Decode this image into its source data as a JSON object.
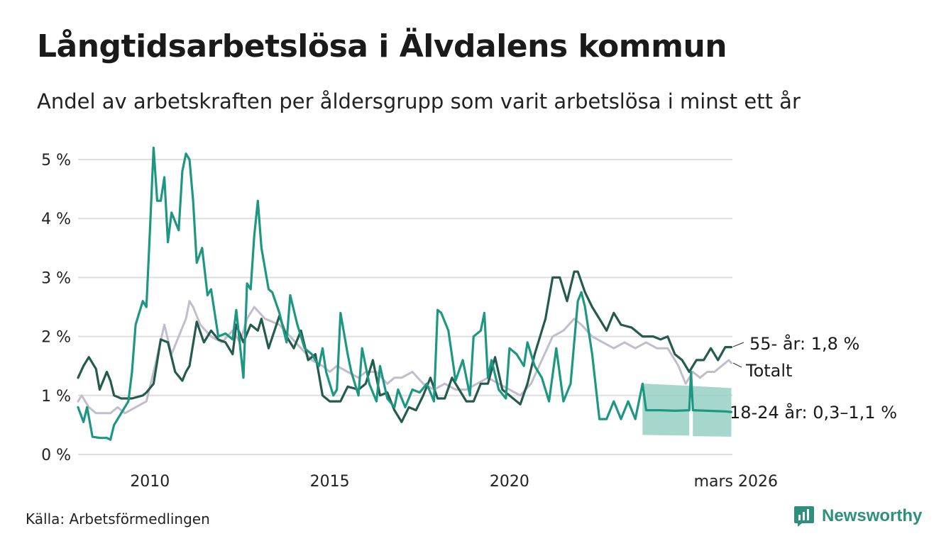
{
  "header": {
    "title": "Långtidsarbetslösa i Älvdalens kommun",
    "subtitle": "Andel av arbetskraften per åldersgrupp som varit arbetslösa i minst ett år"
  },
  "footer": {
    "source": "Källa: Arbetsförmedlingen",
    "brand": "Newsworthy"
  },
  "chart_data": {
    "type": "line",
    "title": "Långtidsarbetslösa i Älvdalens kommun",
    "xlabel": "",
    "ylabel": "",
    "xlim": [
      2008.0,
      2026.2
    ],
    "ylim": [
      0,
      5
    ],
    "y_ticks": [
      {
        "value": 0,
        "label": "0 %"
      },
      {
        "value": 1,
        "label": "1 %"
      },
      {
        "value": 2,
        "label": "2 %"
      },
      {
        "value": 3,
        "label": "3 %"
      },
      {
        "value": 4,
        "label": "4 %"
      },
      {
        "value": 5,
        "label": "5 %"
      }
    ],
    "x_ticks": [
      {
        "value": 2010,
        "label": "2010"
      },
      {
        "value": 2015,
        "label": "2015"
      },
      {
        "value": 2020,
        "label": "2020"
      },
      {
        "value": 2026.17,
        "label": "mars 2026"
      }
    ],
    "grid": true,
    "series": [
      {
        "name": "Totalt",
        "label": "Totalt",
        "color": "#c2bccb",
        "points": [
          [
            2008.0,
            0.9
          ],
          [
            2008.1,
            1.0
          ],
          [
            2008.3,
            0.8
          ],
          [
            2008.5,
            0.7
          ],
          [
            2008.9,
            0.7
          ],
          [
            2009.1,
            0.8
          ],
          [
            2009.3,
            0.7
          ],
          [
            2009.6,
            0.8
          ],
          [
            2009.9,
            0.9
          ],
          [
            2010.1,
            1.4
          ],
          [
            2010.4,
            2.2
          ],
          [
            2010.6,
            1.7
          ],
          [
            2010.8,
            2.0
          ],
          [
            2011.0,
            2.3
          ],
          [
            2011.1,
            2.6
          ],
          [
            2011.2,
            2.5
          ],
          [
            2011.4,
            2.2
          ],
          [
            2011.7,
            2.0
          ],
          [
            2012.0,
            1.9
          ],
          [
            2012.3,
            2.1
          ],
          [
            2012.5,
            1.9
          ],
          [
            2012.7,
            2.3
          ],
          [
            2012.9,
            2.5
          ],
          [
            2013.2,
            2.3
          ],
          [
            2013.6,
            2.2
          ],
          [
            2013.9,
            2.0
          ],
          [
            2014.2,
            1.8
          ],
          [
            2014.5,
            1.6
          ],
          [
            2014.8,
            1.5
          ],
          [
            2015.0,
            1.4
          ],
          [
            2015.2,
            1.5
          ],
          [
            2015.5,
            1.4
          ],
          [
            2015.8,
            1.3
          ],
          [
            2016.0,
            1.4
          ],
          [
            2016.3,
            1.4
          ],
          [
            2016.6,
            1.2
          ],
          [
            2016.8,
            1.3
          ],
          [
            2017.0,
            1.3
          ],
          [
            2017.3,
            1.4
          ],
          [
            2017.6,
            1.2
          ],
          [
            2017.9,
            1.1
          ],
          [
            2018.2,
            1.2
          ],
          [
            2018.5,
            1.1
          ],
          [
            2018.8,
            1.1
          ],
          [
            2019.1,
            1.2
          ],
          [
            2019.4,
            1.3
          ],
          [
            2019.7,
            1.2
          ],
          [
            2020.0,
            1.1
          ],
          [
            2020.3,
            1.0
          ],
          [
            2020.6,
            1.2
          ],
          [
            2020.9,
            1.6
          ],
          [
            2021.2,
            2.0
          ],
          [
            2021.5,
            2.1
          ],
          [
            2021.8,
            2.3
          ],
          [
            2022.0,
            2.2
          ],
          [
            2022.3,
            2.0
          ],
          [
            2022.6,
            1.9
          ],
          [
            2022.9,
            1.8
          ],
          [
            2023.2,
            1.9
          ],
          [
            2023.5,
            1.8
          ],
          [
            2023.8,
            1.9
          ],
          [
            2024.1,
            1.8
          ],
          [
            2024.4,
            1.8
          ],
          [
            2024.7,
            1.5
          ],
          [
            2024.9,
            1.2
          ],
          [
            2025.1,
            1.4
          ],
          [
            2025.3,
            1.3
          ],
          [
            2025.5,
            1.4
          ],
          [
            2025.7,
            1.4
          ],
          [
            2025.9,
            1.5
          ],
          [
            2026.1,
            1.6
          ],
          [
            2026.17,
            1.55
          ]
        ]
      },
      {
        "name": "55- år",
        "label": "55- år: 1,8 %",
        "color": "#255a4e",
        "points": [
          [
            2008.0,
            1.3
          ],
          [
            2008.15,
            1.5
          ],
          [
            2008.3,
            1.65
          ],
          [
            2008.5,
            1.45
          ],
          [
            2008.6,
            1.1
          ],
          [
            2008.8,
            1.4
          ],
          [
            2008.9,
            1.25
          ],
          [
            2009.0,
            1.0
          ],
          [
            2009.2,
            0.95
          ],
          [
            2009.5,
            0.95
          ],
          [
            2009.8,
            1.0
          ],
          [
            2009.9,
            1.05
          ],
          [
            2010.1,
            1.2
          ],
          [
            2010.3,
            1.95
          ],
          [
            2010.5,
            1.9
          ],
          [
            2010.7,
            1.4
          ],
          [
            2010.9,
            1.25
          ],
          [
            2011.0,
            1.4
          ],
          [
            2011.1,
            1.5
          ],
          [
            2011.3,
            2.25
          ],
          [
            2011.5,
            1.9
          ],
          [
            2011.7,
            2.1
          ],
          [
            2011.9,
            1.95
          ],
          [
            2012.1,
            1.9
          ],
          [
            2012.3,
            1.7
          ],
          [
            2012.4,
            2.2
          ],
          [
            2012.6,
            1.9
          ],
          [
            2012.8,
            2.2
          ],
          [
            2013.0,
            2.1
          ],
          [
            2013.1,
            2.3
          ],
          [
            2013.3,
            1.8
          ],
          [
            2013.6,
            2.35
          ],
          [
            2013.8,
            2.0
          ],
          [
            2014.0,
            1.8
          ],
          [
            2014.2,
            2.1
          ],
          [
            2014.4,
            1.6
          ],
          [
            2014.6,
            1.7
          ],
          [
            2014.8,
            1.0
          ],
          [
            2015.0,
            0.9
          ],
          [
            2015.3,
            0.9
          ],
          [
            2015.5,
            1.15
          ],
          [
            2015.8,
            1.1
          ],
          [
            2016.0,
            1.2
          ],
          [
            2016.2,
            1.6
          ],
          [
            2016.4,
            1.0
          ],
          [
            2016.6,
            1.05
          ],
          [
            2016.8,
            0.75
          ],
          [
            2017.0,
            0.55
          ],
          [
            2017.2,
            0.8
          ],
          [
            2017.4,
            0.75
          ],
          [
            2017.6,
            1.0
          ],
          [
            2017.8,
            1.3
          ],
          [
            2018.0,
            0.95
          ],
          [
            2018.2,
            0.95
          ],
          [
            2018.4,
            1.3
          ],
          [
            2018.6,
            1.1
          ],
          [
            2018.8,
            0.9
          ],
          [
            2019.0,
            0.9
          ],
          [
            2019.2,
            1.2
          ],
          [
            2019.4,
            1.2
          ],
          [
            2019.6,
            1.65
          ],
          [
            2019.8,
            1.1
          ],
          [
            2020.0,
            1.0
          ],
          [
            2020.3,
            0.85
          ],
          [
            2020.5,
            1.2
          ],
          [
            2020.7,
            1.7
          ],
          [
            2020.9,
            2.1
          ],
          [
            2021.0,
            2.3
          ],
          [
            2021.2,
            3.0
          ],
          [
            2021.4,
            3.0
          ],
          [
            2021.6,
            2.6
          ],
          [
            2021.8,
            3.1
          ],
          [
            2021.9,
            3.1
          ],
          [
            2022.1,
            2.75
          ],
          [
            2022.3,
            2.5
          ],
          [
            2022.5,
            2.3
          ],
          [
            2022.7,
            2.1
          ],
          [
            2022.9,
            2.4
          ],
          [
            2023.1,
            2.2
          ],
          [
            2023.4,
            2.15
          ],
          [
            2023.7,
            2.0
          ],
          [
            2024.0,
            2.0
          ],
          [
            2024.2,
            1.95
          ],
          [
            2024.4,
            2.0
          ],
          [
            2024.6,
            1.7
          ],
          [
            2024.8,
            1.6
          ],
          [
            2025.0,
            1.4
          ],
          [
            2025.2,
            1.6
          ],
          [
            2025.4,
            1.6
          ],
          [
            2025.6,
            1.8
          ],
          [
            2025.8,
            1.6
          ],
          [
            2026.0,
            1.82
          ],
          [
            2026.17,
            1.82
          ]
        ]
      },
      {
        "name": "18-24 år",
        "label": "18-24 år: 0,3–1,1 %",
        "color": "#1e9782",
        "band_color": "#9bd3c7",
        "points": [
          [
            2008.0,
            0.8
          ],
          [
            2008.15,
            0.55
          ],
          [
            2008.25,
            0.8
          ],
          [
            2008.4,
            0.3
          ],
          [
            2008.6,
            0.28
          ],
          [
            2008.8,
            0.28
          ],
          [
            2008.9,
            0.25
          ],
          [
            2009.0,
            0.5
          ],
          [
            2009.2,
            0.7
          ],
          [
            2009.4,
            0.9
          ],
          [
            2009.5,
            1.4
          ],
          [
            2009.6,
            2.2
          ],
          [
            2009.8,
            2.6
          ],
          [
            2009.9,
            2.5
          ],
          [
            2010.0,
            3.8
          ],
          [
            2010.1,
            5.2
          ],
          [
            2010.2,
            4.3
          ],
          [
            2010.3,
            4.3
          ],
          [
            2010.4,
            4.7
          ],
          [
            2010.5,
            3.6
          ],
          [
            2010.6,
            4.1
          ],
          [
            2010.8,
            3.8
          ],
          [
            2010.9,
            4.8
          ],
          [
            2011.0,
            5.1
          ],
          [
            2011.1,
            5.0
          ],
          [
            2011.2,
            4.3
          ],
          [
            2011.3,
            3.25
          ],
          [
            2011.45,
            3.5
          ],
          [
            2011.6,
            2.7
          ],
          [
            2011.7,
            2.8
          ],
          [
            2011.9,
            2.0
          ],
          [
            2012.1,
            2.05
          ],
          [
            2012.3,
            1.95
          ],
          [
            2012.4,
            2.45
          ],
          [
            2012.6,
            1.3
          ],
          [
            2012.7,
            2.9
          ],
          [
            2012.8,
            2.8
          ],
          [
            2012.9,
            3.7
          ],
          [
            2013.0,
            4.3
          ],
          [
            2013.1,
            3.5
          ],
          [
            2013.3,
            2.8
          ],
          [
            2013.4,
            2.75
          ],
          [
            2013.6,
            2.4
          ],
          [
            2013.8,
            1.9
          ],
          [
            2013.9,
            2.7
          ],
          [
            2014.1,
            2.2
          ],
          [
            2014.3,
            1.8
          ],
          [
            2014.5,
            1.7
          ],
          [
            2014.7,
            1.5
          ],
          [
            2014.8,
            1.8
          ],
          [
            2014.9,
            1.4
          ],
          [
            2015.1,
            1.0
          ],
          [
            2015.2,
            1.1
          ],
          [
            2015.3,
            2.4
          ],
          [
            2015.5,
            1.7
          ],
          [
            2015.6,
            1.4
          ],
          [
            2015.8,
            1.0
          ],
          [
            2015.9,
            1.8
          ],
          [
            2016.1,
            1.2
          ],
          [
            2016.3,
            0.9
          ],
          [
            2016.4,
            1.5
          ],
          [
            2016.6,
            0.95
          ],
          [
            2016.8,
            0.8
          ],
          [
            2016.9,
            1.1
          ],
          [
            2017.1,
            0.8
          ],
          [
            2017.3,
            1.1
          ],
          [
            2017.5,
            1.05
          ],
          [
            2017.7,
            1.2
          ],
          [
            2017.9,
            0.9
          ],
          [
            2018.0,
            2.45
          ],
          [
            2018.1,
            2.4
          ],
          [
            2018.3,
            2.1
          ],
          [
            2018.5,
            1.25
          ],
          [
            2018.7,
            1.6
          ],
          [
            2018.9,
            1.0
          ],
          [
            2019.0,
            2.0
          ],
          [
            2019.2,
            2.1
          ],
          [
            2019.3,
            2.4
          ],
          [
            2019.4,
            1.3
          ],
          [
            2019.5,
            1.6
          ],
          [
            2019.7,
            1.1
          ],
          [
            2019.9,
            0.95
          ],
          [
            2020.0,
            1.8
          ],
          [
            2020.2,
            1.7
          ],
          [
            2020.4,
            1.5
          ],
          [
            2020.5,
            1.9
          ],
          [
            2020.7,
            1.5
          ],
          [
            2020.9,
            1.3
          ],
          [
            2021.1,
            0.9
          ],
          [
            2021.3,
            1.8
          ],
          [
            2021.5,
            0.9
          ],
          [
            2021.7,
            1.2
          ],
          [
            2021.9,
            2.6
          ],
          [
            2022.0,
            2.75
          ],
          [
            2022.1,
            2.5
          ],
          [
            2022.3,
            1.7
          ],
          [
            2022.5,
            0.6
          ],
          [
            2022.7,
            0.6
          ],
          [
            2022.9,
            0.9
          ],
          [
            2023.1,
            0.6
          ],
          [
            2023.3,
            0.9
          ],
          [
            2023.5,
            0.6
          ],
          [
            2023.7,
            1.2
          ],
          [
            2023.8,
            0.75
          ],
          [
            2024.2,
            0.75
          ],
          [
            2024.6,
            0.74
          ],
          [
            2025.0,
            0.75
          ],
          [
            2025.05,
            1.4
          ],
          [
            2025.1,
            0.75
          ],
          [
            2025.5,
            0.74
          ],
          [
            2026.0,
            0.73
          ],
          [
            2026.17,
            0.72
          ]
        ],
        "band": {
          "segments": [
            {
              "x": [
                2023.7,
                2025.0
              ],
              "low": 0.33,
              "high": 1.2
            },
            {
              "x": [
                2025.1,
                2026.17
              ],
              "low": 0.31,
              "high": 1.16
            }
          ]
        }
      }
    ]
  }
}
